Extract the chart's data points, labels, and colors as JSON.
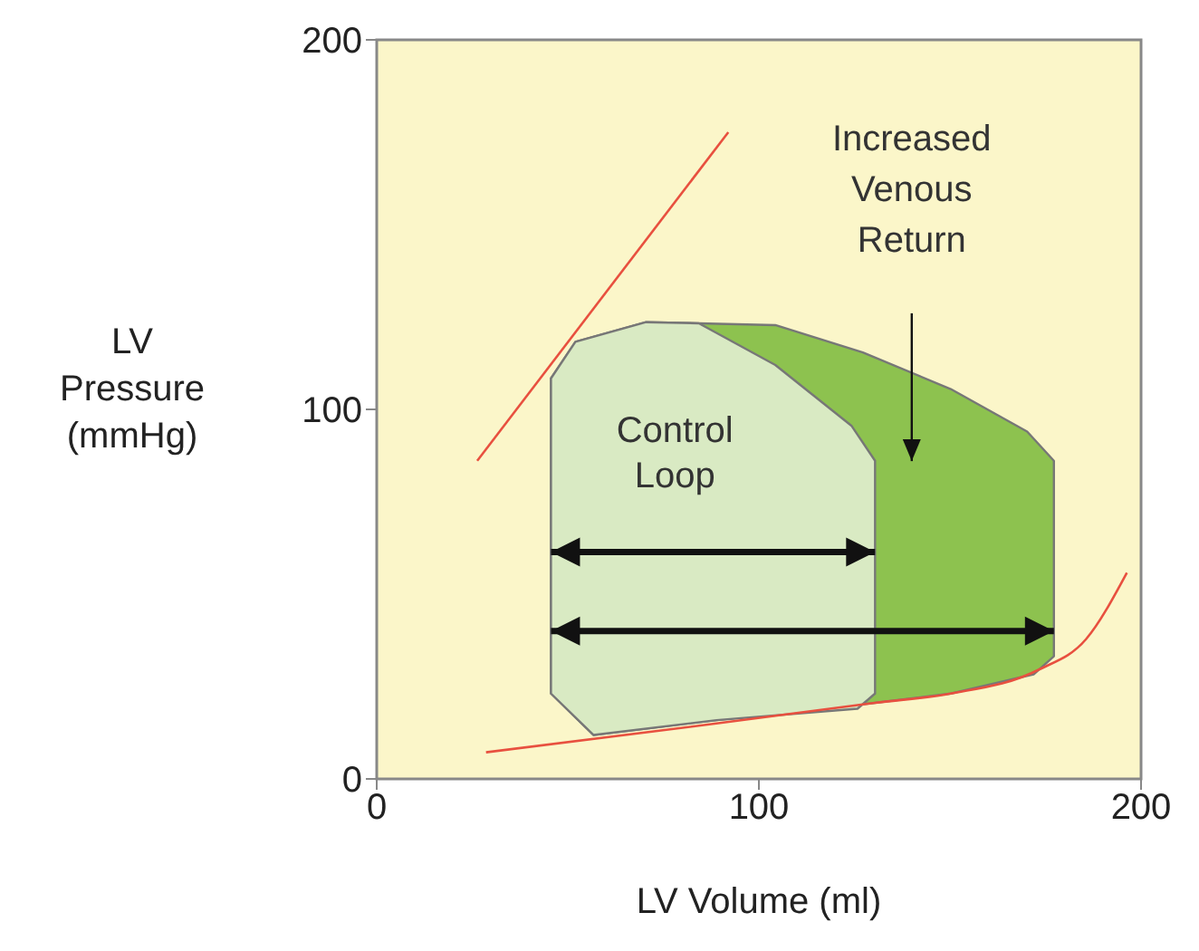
{
  "chart_data": {
    "type": "area",
    "xlabel": "LV Volume (ml)",
    "ylabel": "LV Pressure (mmHg)",
    "xlim": [
      0,
      200
    ],
    "ylim": [
      0,
      200
    ],
    "xticks": [
      0,
      100,
      200
    ],
    "yticks": [
      0,
      100,
      200
    ],
    "series": [
      {
        "color": "#8dc24f",
        "x": [
          56.7,
          45.6,
          45.6,
          52,
          70.5,
          84.3,
          104.3,
          127.2,
          150.2,
          170.2,
          177.2,
          177.2,
          171.9,
          150.2,
          130.4,
          88.9,
          56.7
        ],
        "values": [
          11.9,
          23.1,
          108.4,
          118.3,
          123.6,
          123.3,
          122.8,
          115.4,
          105.5,
          94,
          86.1,
          33.2,
          28.3,
          23.1,
          20.6,
          15.9,
          11.9
        ]
      },
      {
        "color": "#d9eac3",
        "x": [
          56.7,
          45.6,
          45.6,
          52,
          70.5,
          84.3,
          104.3,
          124.2,
          130.4,
          130.4,
          125.8,
          88.9,
          56.7
        ],
        "values": [
          11.9,
          23.1,
          108.4,
          118.3,
          123.6,
          123.3,
          112,
          95.6,
          86.1,
          23.1,
          19,
          15.9,
          11.9
        ]
      },
      {
        "type": "line",
        "color": "#e8503f",
        "x": [
          26.3,
          92
        ],
        "values": [
          86.1,
          175
        ]
      },
      {
        "type": "line",
        "color": "#e8503f",
        "x": [
          28.6,
          88.9,
          130.4,
          150.2,
          173.3,
          185.6,
          196.3
        ],
        "values": [
          7.2,
          15,
          20.6,
          23.1,
          29.6,
          37.8,
          55.8
        ]
      }
    ],
    "annotations": [
      "Control Loop",
      "Increased Venous Return"
    ]
  }
}
